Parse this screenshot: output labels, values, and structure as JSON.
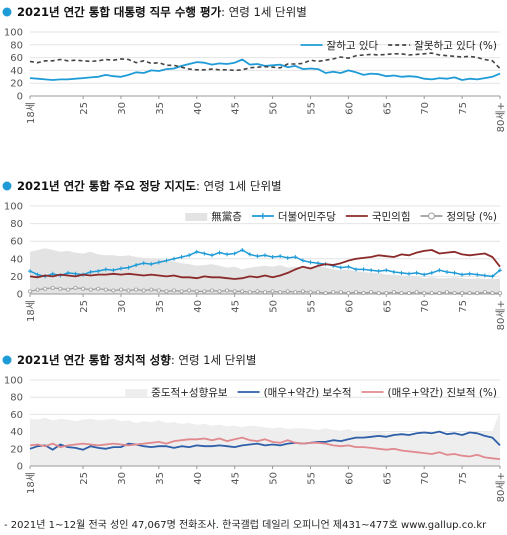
{
  "chart_data": [
    {
      "type": "line",
      "title": "2021년 연간 통합 대통령 직무 수행 평가",
      "subtitle": ": 연령 1세 단위별",
      "ylim": [
        0,
        100
      ],
      "yticks": [
        "0",
        "20",
        "40",
        "60",
        "80",
        "100"
      ],
      "x": [
        18,
        19,
        20,
        21,
        22,
        23,
        24,
        25,
        26,
        27,
        28,
        29,
        30,
        31,
        32,
        33,
        34,
        35,
        36,
        37,
        38,
        39,
        40,
        41,
        42,
        43,
        44,
        45,
        46,
        47,
        48,
        49,
        50,
        51,
        52,
        53,
        54,
        55,
        56,
        57,
        58,
        59,
        60,
        61,
        62,
        63,
        64,
        65,
        66,
        67,
        68,
        69,
        70,
        71,
        72,
        73,
        74,
        75,
        76,
        77,
        78,
        79,
        80
      ],
      "xtick_labels": [
        {
          "x": 18,
          "label": "18세"
        },
        {
          "x": 25,
          "label": "25"
        },
        {
          "x": 30,
          "label": "30"
        },
        {
          "x": 35,
          "label": "35"
        },
        {
          "x": 40,
          "label": "40"
        },
        {
          "x": 45,
          "label": "45"
        },
        {
          "x": 50,
          "label": "50"
        },
        {
          "x": 55,
          "label": "55"
        },
        {
          "x": 60,
          "label": "60"
        },
        {
          "x": 65,
          "label": "65"
        },
        {
          "x": 70,
          "label": "70"
        },
        {
          "x": 75,
          "label": "75"
        },
        {
          "x": 80,
          "label": "80세+"
        }
      ],
      "legend_position": "top-right",
      "series": [
        {
          "name": "잘하고 있다",
          "color": "#1f9bd7",
          "style": "solid",
          "width": 1.8,
          "values": [
            28,
            27,
            26,
            25,
            26,
            26,
            27,
            28,
            29,
            30,
            33,
            31,
            30,
            33,
            37,
            36,
            40,
            39,
            42,
            43,
            47,
            50,
            53,
            52,
            49,
            51,
            50,
            52,
            57,
            49,
            50,
            47,
            48,
            49,
            45,
            47,
            42,
            43,
            42,
            36,
            38,
            36,
            40,
            37,
            33,
            35,
            34,
            31,
            32,
            30,
            31,
            30,
            27,
            26,
            28,
            27,
            29,
            25,
            27,
            26,
            28,
            30,
            35
          ]
        },
        {
          "name": "잘못하고 있다 (%)",
          "color": "#444444",
          "style": "dashed",
          "width": 1.6,
          "values": [
            54,
            52,
            55,
            55,
            57,
            55,
            56,
            55,
            54,
            55,
            57,
            56,
            58,
            57,
            52,
            55,
            51,
            52,
            48,
            48,
            45,
            42,
            41,
            41,
            42,
            41,
            41,
            40,
            41,
            44,
            45,
            46,
            45,
            44,
            50,
            50,
            51,
            56,
            54,
            56,
            58,
            61,
            59,
            63,
            64,
            65,
            64,
            65,
            66,
            66,
            64,
            65,
            66,
            67,
            64,
            63,
            62,
            61,
            62,
            60,
            57,
            55,
            43
          ]
        }
      ]
    },
    {
      "type": "line",
      "title": "2021년 연간 통합 주요 정당 지지도",
      "subtitle": ": 연령 1세 단위별",
      "ylim": [
        0,
        100
      ],
      "yticks": [
        "0",
        "20",
        "40",
        "60",
        "80",
        "100"
      ],
      "x": [
        18,
        19,
        20,
        21,
        22,
        23,
        24,
        25,
        26,
        27,
        28,
        29,
        30,
        31,
        32,
        33,
        34,
        35,
        36,
        37,
        38,
        39,
        40,
        41,
        42,
        43,
        44,
        45,
        46,
        47,
        48,
        49,
        50,
        51,
        52,
        53,
        54,
        55,
        56,
        57,
        58,
        59,
        60,
        61,
        62,
        63,
        64,
        65,
        66,
        67,
        68,
        69,
        70,
        71,
        72,
        73,
        74,
        75,
        76,
        77,
        78,
        79,
        80
      ],
      "xtick_labels": [
        {
          "x": 18,
          "label": "18세"
        },
        {
          "x": 25,
          "label": "25"
        },
        {
          "x": 30,
          "label": "30"
        },
        {
          "x": 35,
          "label": "35"
        },
        {
          "x": 40,
          "label": "40"
        },
        {
          "x": 45,
          "label": "45"
        },
        {
          "x": 50,
          "label": "50"
        },
        {
          "x": 55,
          "label": "55"
        },
        {
          "x": 60,
          "label": "60"
        },
        {
          "x": 65,
          "label": "65"
        },
        {
          "x": 70,
          "label": "70"
        },
        {
          "x": 75,
          "label": "75"
        },
        {
          "x": 80,
          "label": "80세+"
        }
      ],
      "legend_position": "top-right",
      "area": {
        "name": "無黨층",
        "color": "#e3e3e3",
        "values": [
          48,
          50,
          52,
          50,
          48,
          49,
          47,
          46,
          48,
          45,
          44,
          44,
          43,
          44,
          42,
          41,
          40,
          40,
          38,
          37,
          35,
          34,
          32,
          33,
          34,
          32,
          30,
          31,
          28,
          30,
          31,
          32,
          31,
          33,
          30,
          31,
          30,
          30,
          32,
          30,
          28,
          27,
          28,
          26,
          25,
          24,
          24,
          22,
          22,
          21,
          20,
          20,
          18,
          19,
          18,
          18,
          19,
          18,
          17,
          18,
          17,
          17,
          18
        ]
      },
      "series": [
        {
          "name": "더불어민주당",
          "color": "#1f9bd7",
          "style": "solid",
          "width": 1.5,
          "marker": "plus",
          "values": [
            26,
            22,
            20,
            23,
            21,
            24,
            23,
            22,
            25,
            26,
            28,
            27,
            29,
            30,
            33,
            35,
            34,
            36,
            38,
            40,
            42,
            44,
            48,
            46,
            44,
            47,
            45,
            46,
            50,
            45,
            43,
            44,
            42,
            43,
            41,
            42,
            38,
            36,
            35,
            34,
            32,
            30,
            31,
            28,
            28,
            27,
            26,
            27,
            25,
            24,
            23,
            24,
            22,
            24,
            27,
            25,
            24,
            22,
            23,
            22,
            21,
            20,
            27
          ]
        },
        {
          "name": "국민의힘",
          "color": "#8b2a2a",
          "style": "solid",
          "width": 1.8,
          "values": [
            20,
            19,
            21,
            20,
            22,
            21,
            20,
            22,
            21,
            22,
            22,
            23,
            22,
            23,
            22,
            21,
            22,
            21,
            20,
            21,
            19,
            19,
            18,
            20,
            19,
            19,
            18,
            17,
            18,
            20,
            19,
            21,
            19,
            21,
            24,
            28,
            31,
            29,
            32,
            34,
            33,
            35,
            38,
            40,
            41,
            42,
            44,
            43,
            42,
            45,
            44,
            47,
            49,
            50,
            46,
            47,
            48,
            45,
            44,
            45,
            46,
            42,
            31
          ]
        },
        {
          "name": "정의당 (%)",
          "color": "#9e9e9e",
          "style": "solid",
          "width": 1.2,
          "marker": "circle",
          "values": [
            3,
            5,
            6,
            7,
            6,
            5,
            7,
            6,
            5,
            6,
            5,
            4,
            5,
            4,
            5,
            4,
            5,
            4,
            3,
            4,
            3,
            4,
            3,
            3,
            4,
            3,
            4,
            3,
            3,
            2,
            3,
            2,
            3,
            2,
            3,
            2,
            3,
            2,
            2,
            1,
            2,
            2,
            1,
            2,
            1,
            2,
            1,
            1,
            2,
            1,
            1,
            2,
            1,
            1,
            1,
            2,
            1,
            1,
            1,
            1,
            2,
            1,
            1
          ]
        }
      ]
    },
    {
      "type": "line",
      "title": "2021년 연간 통합 정치적 성향",
      "subtitle": ": 연령 1세 단위별",
      "ylim": [
        0,
        100
      ],
      "yticks": [
        "0",
        "20",
        "40",
        "60",
        "80",
        "100"
      ],
      "x": [
        18,
        19,
        20,
        21,
        22,
        23,
        24,
        25,
        26,
        27,
        28,
        29,
        30,
        31,
        32,
        33,
        34,
        35,
        36,
        37,
        38,
        39,
        40,
        41,
        42,
        43,
        44,
        45,
        46,
        47,
        48,
        49,
        50,
        51,
        52,
        53,
        54,
        55,
        56,
        57,
        58,
        59,
        60,
        61,
        62,
        63,
        64,
        65,
        66,
        67,
        68,
        69,
        70,
        71,
        72,
        73,
        74,
        75,
        76,
        77,
        78,
        79,
        80
      ],
      "xtick_labels": [
        {
          "x": 18,
          "label": "18세"
        },
        {
          "x": 25,
          "label": "25"
        },
        {
          "x": 30,
          "label": "30"
        },
        {
          "x": 35,
          "label": "35"
        },
        {
          "x": 40,
          "label": "40"
        },
        {
          "x": 45,
          "label": "45"
        },
        {
          "x": 50,
          "label": "50"
        },
        {
          "x": 55,
          "label": "55"
        },
        {
          "x": 60,
          "label": "60"
        },
        {
          "x": 65,
          "label": "65"
        },
        {
          "x": 70,
          "label": "70"
        },
        {
          "x": 75,
          "label": "75"
        },
        {
          "x": 80,
          "label": "80세+"
        }
      ],
      "legend_position": "top-right",
      "area": {
        "name": "중도적+성향유보",
        "color": "#eeeeee",
        "values": [
          55,
          54,
          56,
          53,
          55,
          54,
          52,
          54,
          55,
          53,
          54,
          55,
          52,
          53,
          50,
          52,
          51,
          53,
          50,
          51,
          49,
          50,
          48,
          49,
          47,
          48,
          46,
          47,
          45,
          47,
          46,
          45,
          44,
          45,
          43,
          44,
          44,
          43,
          42,
          44,
          42,
          41,
          43,
          40,
          41,
          39,
          40,
          38,
          39,
          37,
          38,
          36,
          37,
          36,
          38,
          35,
          36,
          37,
          36,
          38,
          40,
          41,
          63
        ]
      },
      "series": [
        {
          "name": "(매우+약간) 보수적",
          "color": "#2e5fa8",
          "style": "solid",
          "width": 1.8,
          "values": [
            20,
            23,
            24,
            19,
            25,
            22,
            21,
            19,
            23,
            21,
            20,
            22,
            22,
            26,
            25,
            23,
            22,
            23,
            23,
            21,
            23,
            22,
            24,
            23,
            23,
            24,
            23,
            22,
            24,
            25,
            26,
            24,
            25,
            24,
            26,
            27,
            26,
            27,
            28,
            28,
            30,
            29,
            31,
            33,
            33,
            34,
            35,
            34,
            36,
            37,
            36,
            38,
            39,
            38,
            40,
            37,
            38,
            36,
            39,
            38,
            35,
            33,
            24
          ]
        },
        {
          "name": "(매우+약간) 진보적 (%)",
          "color": "#e0898e",
          "style": "solid",
          "width": 1.8,
          "values": [
            24,
            25,
            23,
            26,
            22,
            24,
            25,
            26,
            25,
            24,
            25,
            26,
            25,
            24,
            25,
            26,
            27,
            28,
            26,
            29,
            30,
            31,
            31,
            32,
            30,
            32,
            29,
            31,
            33,
            30,
            29,
            31,
            28,
            27,
            30,
            27,
            26,
            27,
            27,
            26,
            24,
            23,
            24,
            22,
            22,
            21,
            20,
            19,
            20,
            18,
            17,
            16,
            15,
            14,
            16,
            13,
            14,
            12,
            11,
            13,
            10,
            9,
            8
          ]
        }
      ]
    }
  ],
  "footnote": "- 2021년 1~12월 전국 성인 47,067명 전화조사. 한국갤럽 데일리 오피니언 제431~477호 www.gallup.co.kr"
}
